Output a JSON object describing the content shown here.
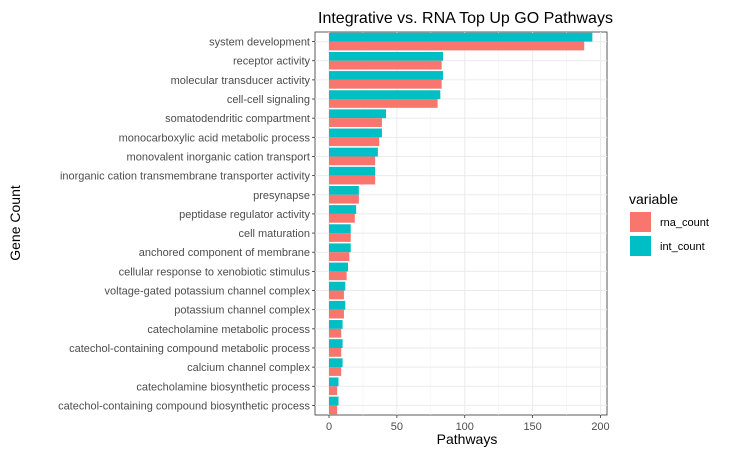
{
  "chart_data": {
    "type": "bar",
    "orientation": "horizontal",
    "title": "Integrative vs. RNA Top Up GO Pathways",
    "xlabel": "Pathways",
    "ylabel": "Gene Count",
    "xlim": [
      0,
      205
    ],
    "xticks": [
      0,
      50,
      100,
      150,
      200
    ],
    "grid": true,
    "legend": {
      "title": "variable",
      "position": "right"
    },
    "categories": [
      "system development",
      "receptor activity",
      "molecular transducer activity",
      "cell-cell signaling",
      "somatodendritic compartment",
      "monocarboxylic acid metabolic process",
      "monovalent inorganic cation transport",
      "inorganic cation transmembrane transporter activity",
      "presynapse",
      "peptidase regulator activity",
      "cell maturation",
      "anchored component of membrane",
      "cellular response to xenobiotic stimulus",
      "voltage-gated potassium channel complex",
      "potassium channel complex",
      "catecholamine metabolic process",
      "catechol-containing compound metabolic process",
      "calcium channel complex",
      "catecholamine biosynthetic process",
      "catechol-containing compound biosynthetic process"
    ],
    "series": [
      {
        "name": "rna_count",
        "color": "#F8766D",
        "values": [
          188,
          83,
          83,
          80,
          39,
          37,
          34,
          34,
          22,
          19,
          16,
          15,
          13,
          11,
          11,
          9,
          9,
          9,
          6,
          6
        ]
      },
      {
        "name": "int_count",
        "color": "#00BFC4",
        "values": [
          194,
          84,
          84,
          82,
          42,
          39,
          36,
          34,
          22,
          20,
          16,
          16,
          14,
          12,
          12,
          10,
          10,
          10,
          7,
          7
        ]
      }
    ]
  }
}
